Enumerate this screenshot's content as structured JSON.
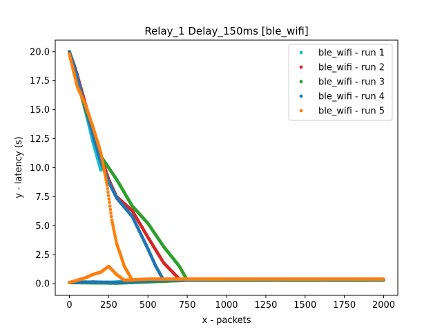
{
  "chart_data": {
    "type": "scatter",
    "title": "Relay_1 Delay_150ms [ble_wifi]",
    "xlabel": "x - packets",
    "ylabel": "y - latency (s)",
    "xlim": [
      -90,
      2090
    ],
    "ylim": [
      -1.0,
      21.0
    ],
    "x_ticks": [
      0,
      250,
      500,
      750,
      1000,
      1250,
      1500,
      1750,
      2000
    ],
    "y_ticks": [
      0.0,
      2.5,
      5.0,
      7.5,
      10.0,
      12.5,
      15.0,
      17.5,
      20.0
    ],
    "grid": false,
    "legend_position": "top-right",
    "series": [
      {
        "name": "ble_wifi - run 1",
        "color": "#17becf",
        "descending": [
          [
            0,
            20.0
          ],
          [
            40,
            18.5
          ],
          [
            90,
            15.6
          ],
          [
            150,
            12.2
          ],
          [
            200,
            9.8
          ]
        ],
        "floor": [
          [
            5,
            0.1
          ],
          [
            100,
            0.15
          ],
          [
            200,
            0.1
          ],
          [
            300,
            0.15
          ],
          [
            400,
            0.3
          ]
        ]
      },
      {
        "name": "ble_wifi - run 2",
        "color": "#d62728",
        "descending": [
          [
            0,
            20.0
          ],
          [
            50,
            18.0
          ],
          [
            100,
            15.6
          ],
          [
            150,
            13.3
          ],
          [
            200,
            11.0
          ],
          [
            250,
            9.0
          ],
          [
            300,
            7.5
          ],
          [
            400,
            6.3
          ],
          [
            500,
            4.0
          ],
          [
            600,
            1.8
          ],
          [
            700,
            0.4
          ]
        ],
        "floor": [
          [
            400,
            0.3
          ],
          [
            700,
            0.35
          ],
          [
            1000,
            0.35
          ],
          [
            1500,
            0.35
          ],
          [
            2000,
            0.35
          ]
        ]
      },
      {
        "name": "ble_wifi - run 3",
        "color": "#2ca02c",
        "descending": [
          [
            0,
            20.0
          ],
          [
            100,
            15.0
          ],
          [
            200,
            11.0
          ],
          [
            300,
            9.0
          ],
          [
            400,
            6.7
          ],
          [
            500,
            5.2
          ],
          [
            600,
            3.2
          ],
          [
            700,
            1.5
          ],
          [
            750,
            0.3
          ]
        ],
        "floor": [
          [
            0,
            0.1
          ],
          [
            300,
            0.05
          ],
          [
            750,
            0.3
          ],
          [
            1000,
            0.3
          ],
          [
            1500,
            0.3
          ],
          [
            2000,
            0.3
          ]
        ]
      },
      {
        "name": "ble_wifi - run 4",
        "color": "#1f77b4",
        "descending": [
          [
            0,
            20.0
          ],
          [
            50,
            17.8
          ],
          [
            100,
            15.3
          ],
          [
            150,
            12.8
          ],
          [
            200,
            10.5
          ],
          [
            250,
            8.8
          ],
          [
            300,
            7.4
          ],
          [
            400,
            5.8
          ],
          [
            500,
            3.0
          ],
          [
            550,
            1.5
          ],
          [
            600,
            0.3
          ]
        ],
        "floor": [
          [
            0,
            0.1
          ],
          [
            150,
            0.15
          ],
          [
            300,
            0.1
          ],
          [
            600,
            0.3
          ],
          [
            1000,
            0.35
          ],
          [
            1500,
            0.35
          ],
          [
            2000,
            0.35
          ]
        ]
      },
      {
        "name": "ble_wifi - run 5",
        "color": "#ff7f0e",
        "descending": [
          [
            0,
            19.8
          ],
          [
            50,
            17.0
          ],
          [
            100,
            15.5
          ],
          [
            150,
            13.5
          ],
          [
            200,
            11.3
          ],
          [
            240,
            8.5
          ],
          [
            270,
            5.5
          ],
          [
            300,
            3.5
          ],
          [
            350,
            1.5
          ],
          [
            400,
            0.3
          ]
        ],
        "floor": [
          [
            0,
            0.1
          ],
          [
            100,
            0.5
          ],
          [
            150,
            0.8
          ],
          [
            200,
            1.0
          ],
          [
            250,
            1.5
          ],
          [
            300,
            0.8
          ],
          [
            350,
            0.3
          ],
          [
            500,
            0.4
          ],
          [
            1000,
            0.4
          ],
          [
            1500,
            0.4
          ],
          [
            2000,
            0.4
          ]
        ]
      }
    ]
  }
}
